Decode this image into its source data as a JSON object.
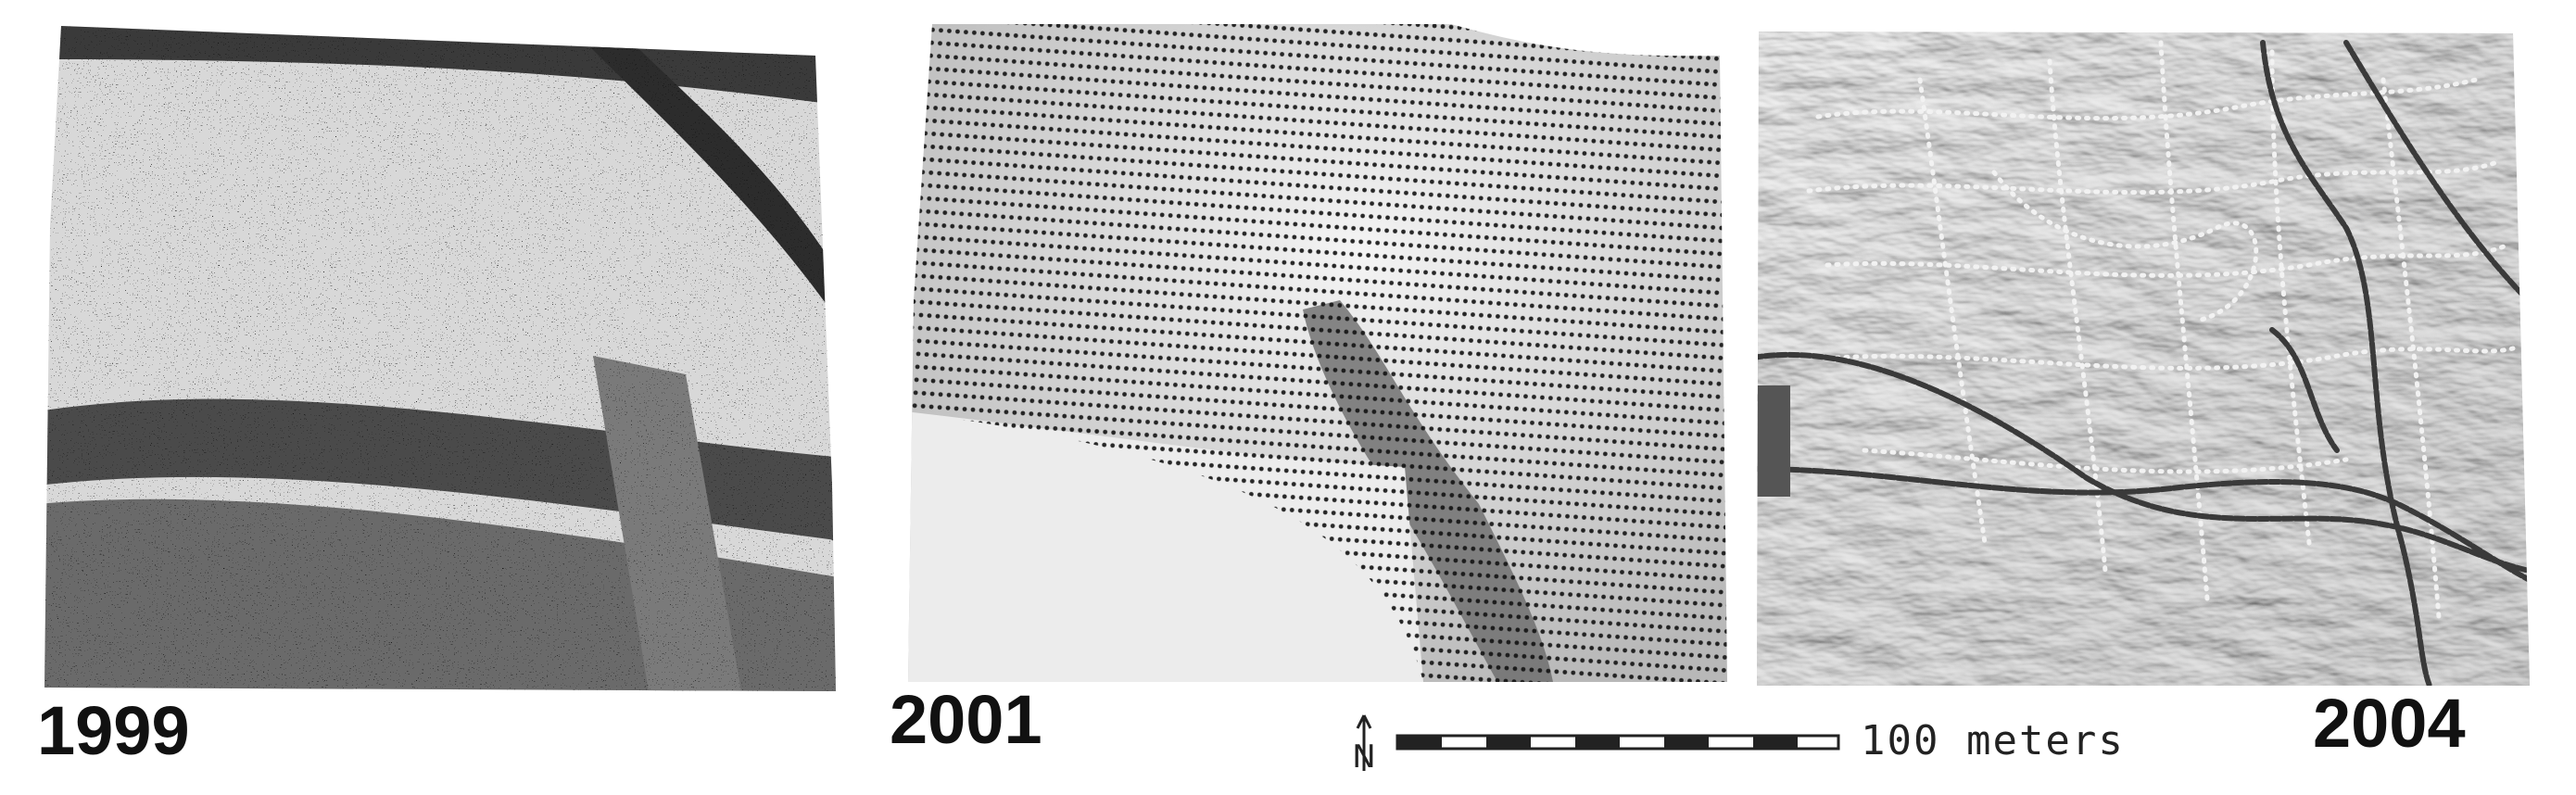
{
  "panels": [
    {
      "label": "1999"
    },
    {
      "label": "2001"
    },
    {
      "label": "2004"
    }
  ],
  "scale": {
    "text": "100 meters",
    "north_symbol": "N"
  },
  "colors": {
    "ink": "#111111",
    "paper": "#ffffff"
  }
}
